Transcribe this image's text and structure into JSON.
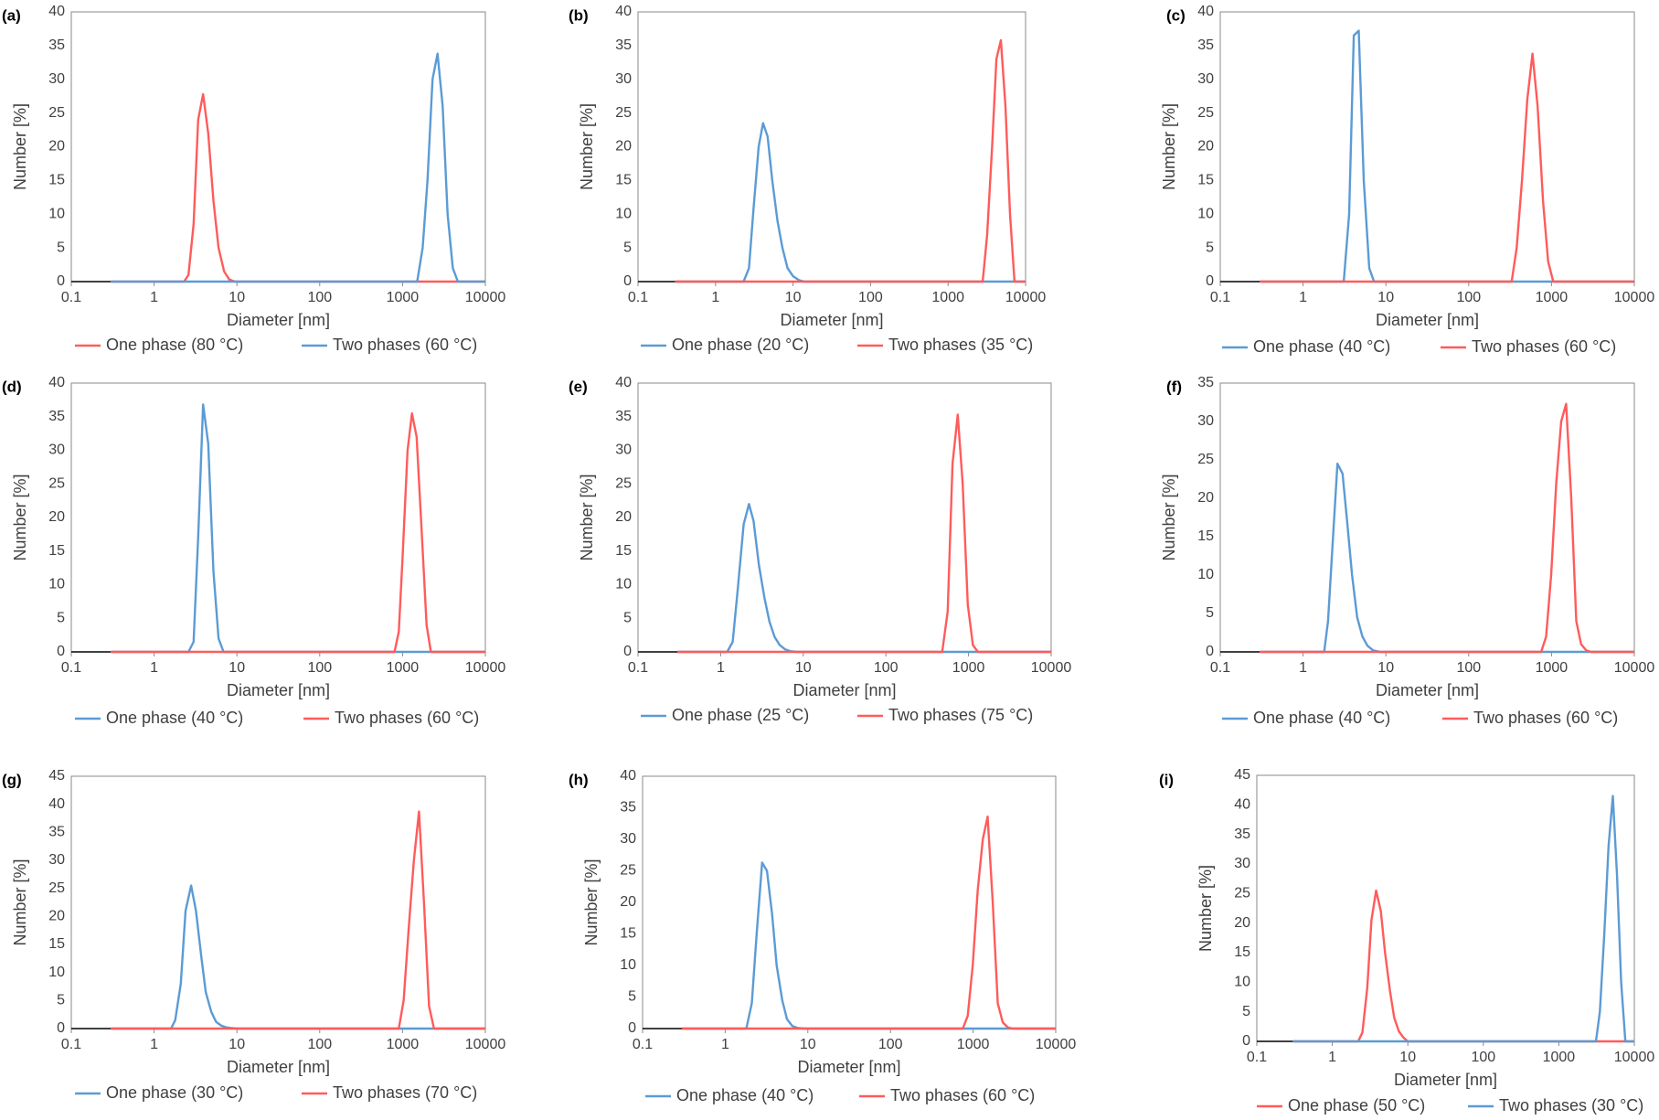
{
  "figure": {
    "colors": {
      "blue": "#5B9BD5",
      "red": "#FF5B5B",
      "axis": "#8a8a8a",
      "text": "#404040"
    }
  },
  "chart_data": [
    {
      "panel": "(a)",
      "type": "line",
      "xscale": "log",
      "xlim": [
        0.1,
        10000
      ],
      "ylim": [
        0,
        40
      ],
      "xticks": [
        "0.1",
        "1",
        "10",
        "100",
        "1000",
        "10000"
      ],
      "yticks": [
        "0",
        "5",
        "10",
        "15",
        "20",
        "25",
        "30",
        "35",
        "40"
      ],
      "xlabel": "Diameter [nm]",
      "ylabel": "Number [%]",
      "series": [
        {
          "name": "One phase (80 °C)",
          "color": "#FF5B5B",
          "x": [
            0.3,
            2.3,
            2.6,
            3.0,
            3.4,
            3.9,
            4.5,
            5.2,
            6.0,
            7.0,
            8.1,
            9.5,
            11,
            10000
          ],
          "y": [
            0,
            0,
            1.0,
            8.5,
            24,
            27.8,
            22,
            12,
            5,
            1.5,
            0.3,
            0,
            0,
            0
          ]
        },
        {
          "name": "Two phases (60 °C)",
          "color": "#5B9BD5",
          "x": [
            0.3,
            1500,
            1750,
            2000,
            2300,
            2650,
            3050,
            3500,
            4050,
            4650,
            10000
          ],
          "y": [
            0,
            0,
            5,
            15,
            30,
            33.8,
            26,
            10,
            2,
            0,
            0
          ]
        }
      ]
    },
    {
      "panel": "(b)",
      "type": "line",
      "xscale": "log",
      "xlim": [
        0.1,
        10000
      ],
      "ylim": [
        0,
        40
      ],
      "xticks": [
        "0.1",
        "1",
        "10",
        "100",
        "1000",
        "10000"
      ],
      "yticks": [
        "0",
        "5",
        "10",
        "15",
        "20",
        "25",
        "30",
        "35",
        "40"
      ],
      "xlabel": "Diameter [nm]",
      "ylabel": "Number [%]",
      "series": [
        {
          "name": "One phase (20 °C)",
          "color": "#5B9BD5",
          "x": [
            0.3,
            2.3,
            2.7,
            3.1,
            3.6,
            4.1,
            4.7,
            5.4,
            6.3,
            7.3,
            8.5,
            10,
            12,
            14,
            10000
          ],
          "y": [
            0,
            0,
            2,
            11,
            20,
            23.5,
            21.5,
            15,
            9,
            5,
            2,
            0.8,
            0.2,
            0,
            0
          ]
        },
        {
          "name": "Two phases (35 °C)",
          "color": "#FF5B5B",
          "x": [
            0.3,
            2800,
            3200,
            3700,
            4200,
            4800,
            5500,
            6300,
            7200,
            10000
          ],
          "y": [
            0,
            0,
            7,
            20,
            33,
            35.8,
            26,
            10,
            0,
            0
          ]
        }
      ]
    },
    {
      "panel": "(c)",
      "type": "line",
      "xscale": "log",
      "xlim": [
        0.1,
        10000
      ],
      "ylim": [
        0,
        40
      ],
      "xticks": [
        "0.1",
        "1",
        "10",
        "100",
        "1000",
        "10000"
      ],
      "yticks": [
        "0",
        "5",
        "10",
        "15",
        "20",
        "25",
        "30",
        "35",
        "40"
      ],
      "xlabel": "Diameter [nm]",
      "ylabel": "Number [%]",
      "series": [
        {
          "name": "One phase (40 °C)",
          "color": "#5B9BD5",
          "x": [
            0.3,
            3.1,
            3.6,
            4.1,
            4.7,
            5.4,
            6.3,
            7.2,
            10000
          ],
          "y": [
            0,
            0,
            10,
            36.5,
            37.2,
            15,
            2,
            0,
            0
          ]
        },
        {
          "name": "Two phases (60 °C)",
          "color": "#FF5B5B",
          "x": [
            0.3,
            330,
            380,
            440,
            510,
            590,
            680,
            790,
            910,
            1050,
            10000
          ],
          "y": [
            0,
            0,
            5,
            15,
            27,
            33.8,
            26,
            12,
            3,
            0,
            0
          ]
        }
      ]
    },
    {
      "panel": "(d)",
      "type": "line",
      "xscale": "log",
      "xlim": [
        0.1,
        10000
      ],
      "ylim": [
        0,
        40
      ],
      "xticks": [
        "0.1",
        "1",
        "10",
        "100",
        "1000",
        "10000"
      ],
      "yticks": [
        "0",
        "5",
        "10",
        "15",
        "20",
        "25",
        "30",
        "35",
        "40"
      ],
      "xlabel": "Diameter [nm]",
      "ylabel": "Number [%]",
      "series": [
        {
          "name": "One phase (40 °C)",
          "color": "#5B9BD5",
          "x": [
            0.3,
            2.6,
            3.0,
            3.4,
            3.9,
            4.5,
            5.2,
            6.0,
            6.9,
            10000
          ],
          "y": [
            0,
            0,
            1.5,
            17,
            36.8,
            31,
            12,
            2,
            0,
            0
          ]
        },
        {
          "name": "Two phases (60 °C)",
          "color": "#FF5B5B",
          "x": [
            0.3,
            800,
            900,
            1000,
            1150,
            1300,
            1480,
            1700,
            1950,
            2200,
            10000
          ],
          "y": [
            0,
            0,
            3,
            14,
            30,
            35.5,
            32,
            18,
            4,
            0,
            0
          ]
        }
      ]
    },
    {
      "panel": "(e)",
      "type": "line",
      "xscale": "log",
      "xlim": [
        0.1,
        10000
      ],
      "ylim": [
        0,
        40
      ],
      "xticks": [
        "0.1",
        "1",
        "10",
        "100",
        "1000",
        "10000"
      ],
      "yticks": [
        "0",
        "5",
        "10",
        "15",
        "20",
        "25",
        "30",
        "35",
        "40"
      ],
      "xlabel": "Diameter [nm]",
      "ylabel": "Number [%]",
      "series": [
        {
          "name": "One phase (25 °C)",
          "color": "#5B9BD5",
          "x": [
            0.3,
            1.2,
            1.4,
            1.6,
            1.9,
            2.2,
            2.5,
            2.9,
            3.4,
            3.9,
            4.5,
            5.2,
            6.0,
            7.0,
            8.5,
            10000
          ],
          "y": [
            0,
            0,
            1.5,
            9,
            19,
            22,
            19.5,
            13,
            8,
            4.5,
            2.2,
            1,
            0.4,
            0.1,
            0,
            0
          ]
        },
        {
          "name": "Two phases (75 °C)",
          "color": "#FF5B5B",
          "x": [
            0.3,
            480,
            560,
            640,
            740,
            850,
            980,
            1130,
            1300,
            10000
          ],
          "y": [
            0,
            0,
            6,
            28,
            35.3,
            25,
            7,
            1,
            0,
            0
          ]
        }
      ]
    },
    {
      "panel": "(f)",
      "type": "line",
      "xscale": "log",
      "xlim": [
        0.1,
        10000
      ],
      "ylim": [
        0,
        35
      ],
      "xticks": [
        "0.1",
        "1",
        "10",
        "100",
        "1000",
        "10000"
      ],
      "yticks": [
        "0",
        "5",
        "10",
        "15",
        "20",
        "25",
        "30",
        "35"
      ],
      "xlabel": "Diameter [nm]",
      "ylabel": "Number [%]",
      "series": [
        {
          "name": "One phase (40 °C)",
          "color": "#5B9BD5",
          "x": [
            0.3,
            1.8,
            2.0,
            2.3,
            2.6,
            3.0,
            3.4,
            3.9,
            4.5,
            5.2,
            6.0,
            7.0,
            8.5,
            10,
            10000
          ],
          "y": [
            0,
            0,
            4,
            15,
            24.5,
            23.2,
            17,
            10,
            4.5,
            2,
            0.8,
            0.2,
            0,
            0,
            0
          ]
        },
        {
          "name": "Two phases (60 °C)",
          "color": "#FF5B5B",
          "x": [
            0.3,
            750,
            860,
            990,
            1140,
            1310,
            1500,
            1730,
            1990,
            2280,
            2620,
            3000,
            10000
          ],
          "y": [
            0,
            0,
            2,
            10,
            22,
            30,
            32.3,
            20,
            4,
            1,
            0.2,
            0,
            0
          ]
        }
      ]
    },
    {
      "panel": "(g)",
      "type": "line",
      "xscale": "log",
      "xlim": [
        0.1,
        10000
      ],
      "ylim": [
        0,
        45
      ],
      "xticks": [
        "0.1",
        "1",
        "10",
        "100",
        "1000",
        "10000"
      ],
      "yticks": [
        "0",
        "5",
        "10",
        "15",
        "20",
        "25",
        "30",
        "35",
        "40",
        "45"
      ],
      "xlabel": "Diameter [nm]",
      "ylabel": "Number [%]",
      "series": [
        {
          "name": "One phase (30 °C)",
          "color": "#5B9BD5",
          "x": [
            0.3,
            1.6,
            1.8,
            2.1,
            2.4,
            2.8,
            3.2,
            3.7,
            4.2,
            4.9,
            5.6,
            6.5,
            7.5,
            8.6,
            10,
            10000
          ],
          "y": [
            0,
            0,
            1.5,
            8,
            21,
            25.5,
            21,
            13,
            6.5,
            3,
            1.2,
            0.5,
            0.2,
            0.1,
            0,
            0
          ]
        },
        {
          "name": "Two phases (70 °C)",
          "color": "#FF5B5B",
          "x": [
            0.3,
            900,
            1030,
            1190,
            1370,
            1580,
            1820,
            2090,
            2400,
            10000
          ],
          "y": [
            0,
            0,
            5,
            18,
            30,
            38.7,
            22,
            4,
            0,
            0
          ]
        }
      ]
    },
    {
      "panel": "(h)",
      "type": "line",
      "xscale": "log",
      "xlim": [
        0.1,
        10000
      ],
      "ylim": [
        0,
        40
      ],
      "xticks": [
        "0.1",
        "1",
        "10",
        "100",
        "1000",
        "10000"
      ],
      "yticks": [
        "0",
        "5",
        "10",
        "15",
        "20",
        "25",
        "30",
        "35",
        "40"
      ],
      "xlabel": "Diameter [nm]",
      "ylabel": "Number [%]",
      "series": [
        {
          "name": "One phase (40 °C)",
          "color": "#5B9BD5",
          "x": [
            0.3,
            1.8,
            2.1,
            2.4,
            2.8,
            3.2,
            3.7,
            4.2,
            4.9,
            5.6,
            6.5,
            7.5,
            9,
            10000
          ],
          "y": [
            0,
            0,
            4,
            15,
            26.3,
            25,
            18,
            10,
            4.5,
            1.5,
            0.4,
            0.1,
            0,
            0
          ]
        },
        {
          "name": "Two phases (60 °C)",
          "color": "#FF5B5B",
          "x": [
            0.3,
            750,
            860,
            990,
            1140,
            1310,
            1500,
            1730,
            1990,
            2280,
            2620,
            3000,
            10000
          ],
          "y": [
            0,
            0,
            2,
            10,
            22,
            30,
            33.6,
            20,
            4,
            1,
            0.2,
            0,
            0
          ]
        }
      ]
    },
    {
      "panel": "(i)",
      "type": "line",
      "xscale": "log",
      "xlim": [
        0.1,
        10000
      ],
      "ylim": [
        0,
        45
      ],
      "xticks": [
        "0.1",
        "1",
        "10",
        "100",
        "1000",
        "10000"
      ],
      "yticks": [
        "0",
        "5",
        "10",
        "15",
        "20",
        "25",
        "30",
        "35",
        "40",
        "45"
      ],
      "xlabel": "Diameter [nm]",
      "ylabel": "Number [%]",
      "series": [
        {
          "name": "One phase (50 °C)",
          "color": "#FF5B5B",
          "x": [
            0.3,
            2.2,
            2.5,
            2.9,
            3.3,
            3.8,
            4.4,
            5.0,
            5.8,
            6.6,
            7.6,
            8.8,
            10,
            10000
          ],
          "y": [
            0,
            0,
            1.5,
            9,
            20.5,
            25.5,
            22,
            15,
            8.5,
            4,
            1.7,
            0.6,
            0,
            0
          ]
        },
        {
          "name": "Two phases (30 °C)",
          "color": "#5B9BD5",
          "x": [
            0.3,
            3100,
            3500,
            4000,
            4550,
            5200,
            5900,
            6700,
            7600,
            10000
          ],
          "y": [
            0,
            0,
            5,
            18,
            33,
            41.5,
            28,
            10,
            0,
            0
          ]
        }
      ]
    }
  ]
}
